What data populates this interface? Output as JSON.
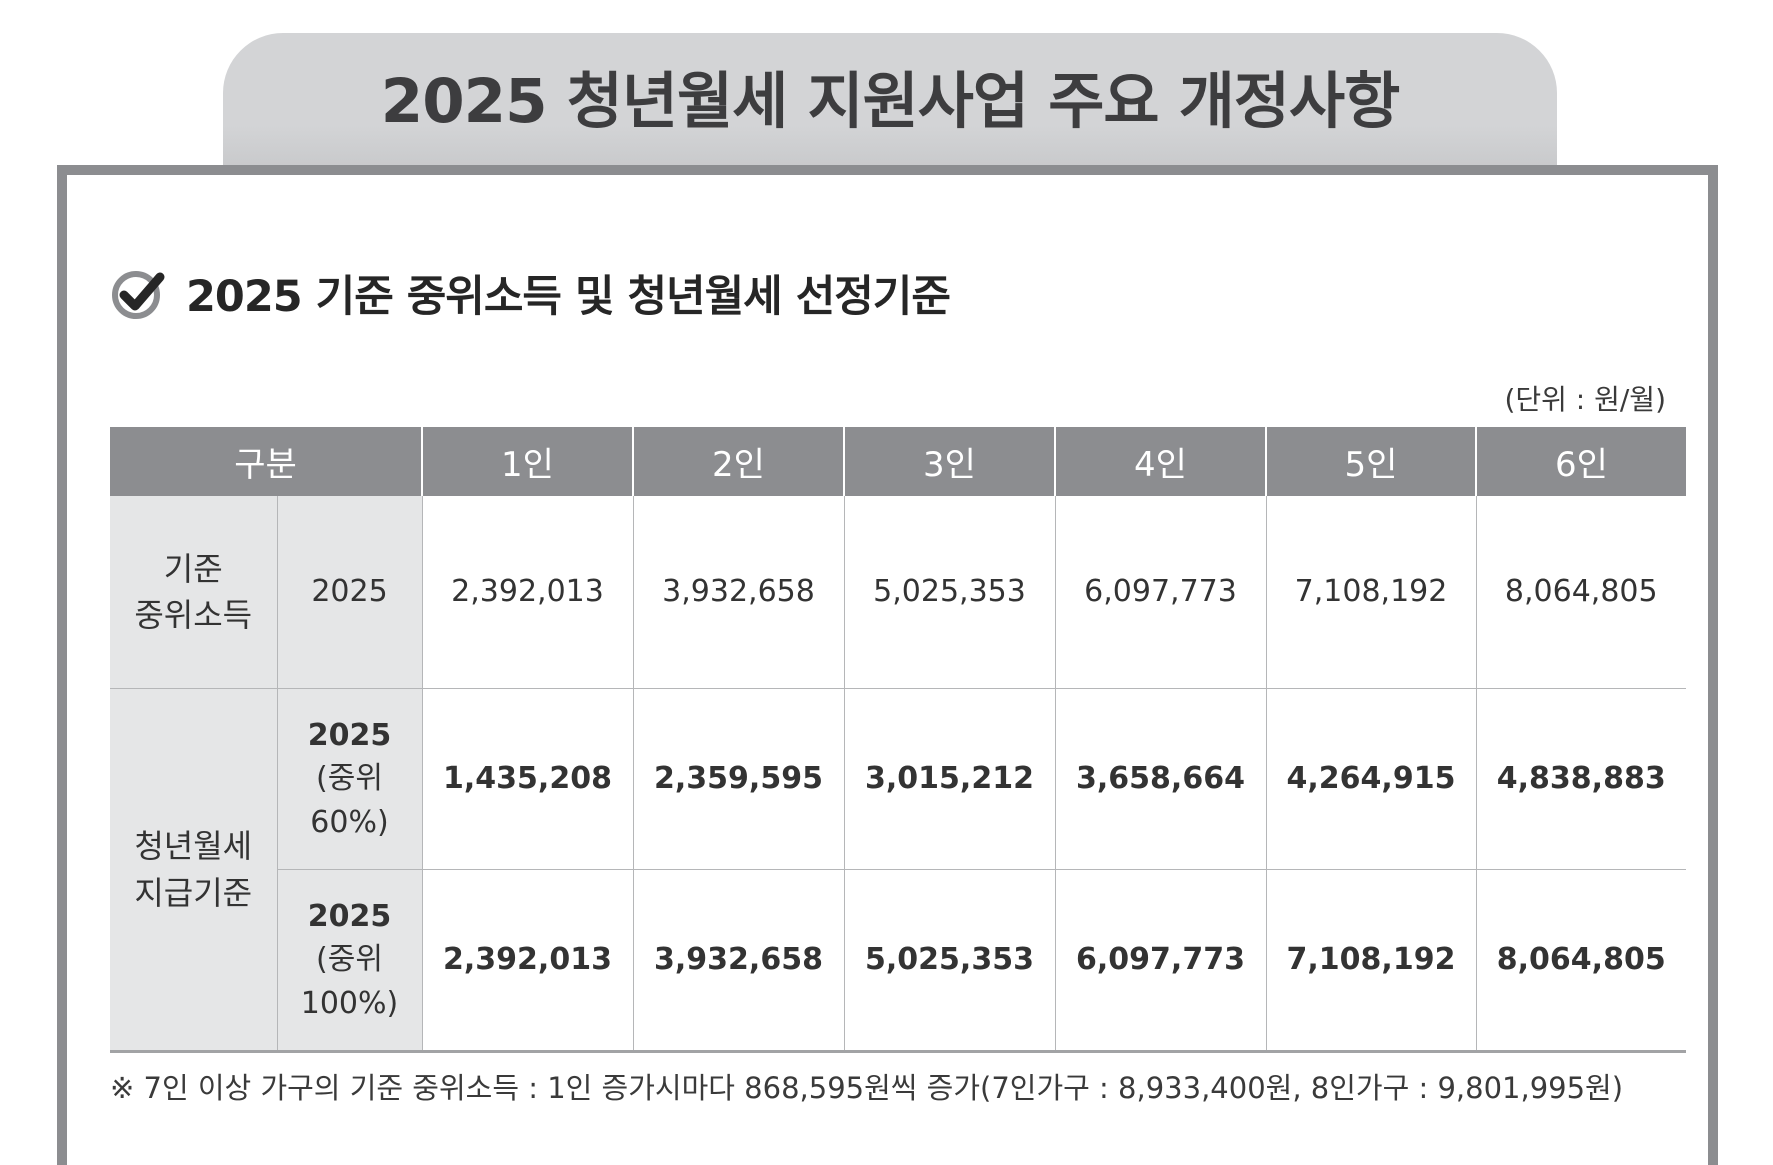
{
  "title": "2025 청년월세 지원사업 주요 개정사항",
  "section": {
    "icon": "check-circle-icon",
    "heading": "2025 기준 중위소득 및 청년월세 선정기준"
  },
  "unit": "(단위 : 원/월)",
  "table": {
    "headers": [
      "구분",
      "1인",
      "2인",
      "3인",
      "4인",
      "5인",
      "6인"
    ],
    "base_income": {
      "label_line1": "기준",
      "label_line2": "중위소득",
      "year": "2025",
      "values": [
        "2,392,013",
        "3,932,658",
        "5,025,353",
        "6,097,773",
        "7,108,192",
        "8,064,805"
      ]
    },
    "rent_support": {
      "label_line1": "청년월세",
      "label_line2": "지급기준",
      "rows": [
        {
          "year": "2025",
          "sub_line1": "(중위",
          "sub_line2": "60%)",
          "values": [
            "1,435,208",
            "2,359,595",
            "3,015,212",
            "3,658,664",
            "4,264,915",
            "4,838,883"
          ]
        },
        {
          "year": "2025",
          "sub_line1": "(중위",
          "sub_line2": "100%)",
          "values": [
            "2,392,013",
            "3,932,658",
            "5,025,353",
            "6,097,773",
            "7,108,192",
            "8,064,805"
          ]
        }
      ]
    }
  },
  "footnote": "※ 7인 이상 가구의 기준 중위소득 : 1인 증가시마다 868,595원씩 증가(7인가구 : 8,933,400원, 8인가구 : 9,801,995원)",
  "colors": {
    "header_bg": "#8c8d90",
    "title_tab_bg": "#d3d4d6",
    "label_bg": "#e5e6e7",
    "panel_border": "#8c8d90"
  }
}
